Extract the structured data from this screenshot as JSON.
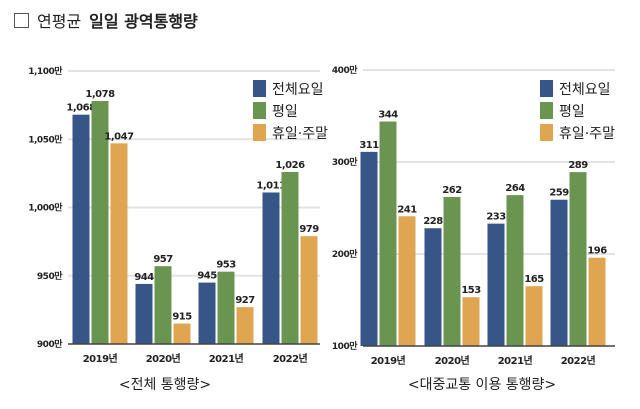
{
  "title": {
    "prefix": "연평균",
    "bold": "일일 광역통행량"
  },
  "colors": {
    "전체요일": "#375586",
    "평일": "#6a9550",
    "휴일·주말": "#dfa550"
  },
  "chart_data": [
    {
      "type": "bar",
      "caption": "<전체 통행량>",
      "categories": [
        "2019년",
        "2020년",
        "2021년",
        "2022년"
      ],
      "series": [
        {
          "name": "전체요일",
          "values": [
            1068,
            944,
            945,
            1011
          ],
          "labels": [
            "1,068",
            "944",
            "945",
            "1,011"
          ]
        },
        {
          "name": "평일",
          "values": [
            1078,
            957,
            953,
            1026
          ],
          "labels": [
            "1,078",
            "957",
            "953",
            "1,026"
          ]
        },
        {
          "name": "휴일·주말",
          "values": [
            1047,
            915,
            927,
            979
          ],
          "labels": [
            "1,047",
            "915",
            "927",
            "979"
          ]
        }
      ],
      "ylim": [
        900,
        1100
      ],
      "yticks": [
        900,
        950,
        1000,
        1050,
        1100
      ],
      "ytick_labels": [
        "900만",
        "950만",
        "1,000만",
        "1,050만",
        "1,100만"
      ],
      "grid": true,
      "legend": "top-right"
    },
    {
      "type": "bar",
      "caption": "<대중교통 이용 통행량>",
      "categories": [
        "2019년",
        "2020년",
        "2021년",
        "2022년"
      ],
      "series": [
        {
          "name": "전체요일",
          "values": [
            311,
            228,
            233,
            259
          ],
          "labels": [
            "311",
            "228",
            "233",
            "259"
          ]
        },
        {
          "name": "평일",
          "values": [
            344,
            262,
            264,
            289
          ],
          "labels": [
            "344",
            "262",
            "264",
            "289"
          ]
        },
        {
          "name": "휴일·주말",
          "values": [
            241,
            153,
            165,
            196
          ],
          "labels": [
            "241",
            "153",
            "165",
            "196"
          ]
        }
      ],
      "ylim": [
        100,
        400
      ],
      "yticks": [
        100,
        200,
        300,
        400
      ],
      "ytick_labels": [
        "100만",
        "200만",
        "300만",
        "400만"
      ],
      "grid": true,
      "legend": "top-right"
    }
  ]
}
